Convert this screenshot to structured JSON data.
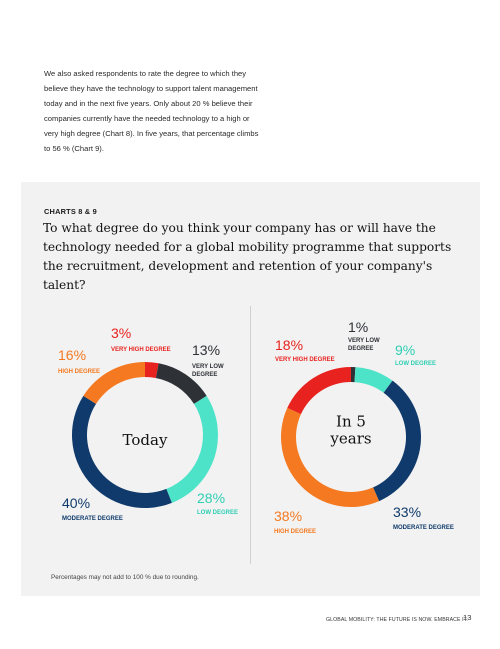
{
  "intro_text": "We also asked respondents to rate the degree to which they believe they have the technology to support talent management today and in the next five years.  Only about 20 % believe their companies currently have the needed technology to a high or very high degree (Chart 8).  In five years, that percentage climbs to 56 % (Chart 9).",
  "section_label": "CHARTS 8 & 9",
  "question": "To what degree do you think your company has or will have the technology needed for a global mobility programme that supports the recruitment, development and retention of your company's talent?",
  "note": "Percentages may not add to 100 % due to rounding.",
  "footer": "GLOBAL MOBILITY: THE FUTURE IS NOW. EMBRACE IT.",
  "page_number": "13",
  "colors": {
    "very_high": "#e8231f",
    "high": "#f47920",
    "moderate": "#0f3a6b",
    "low": "#4de3c9",
    "very_low": "#2e3136"
  },
  "chart_data": [
    {
      "type": "pie",
      "center_label": "Today",
      "slices": [
        {
          "label": "VERY HIGH DEGREE",
          "value": 3,
          "display": "3%",
          "color_key": "very_high"
        },
        {
          "label": "VERY LOW DEGREE",
          "value": 13,
          "display": "13%",
          "color_key": "very_low"
        },
        {
          "label": "LOW DEGREE",
          "value": 28,
          "display": "28%",
          "color_key": "low"
        },
        {
          "label": "MODERATE DEGREE",
          "value": 40,
          "display": "40%",
          "color_key": "moderate"
        },
        {
          "label": "HIGH DEGREE",
          "value": 16,
          "display": "16%",
          "color_key": "high"
        }
      ]
    },
    {
      "type": "pie",
      "center_label": "In 5 years",
      "slices": [
        {
          "label": "VERY LOW DEGREE",
          "value": 1,
          "display": "1%",
          "color_key": "very_low"
        },
        {
          "label": "LOW DEGREE",
          "value": 9,
          "display": "9%",
          "color_key": "low"
        },
        {
          "label": "MODERATE DEGREE",
          "value": 33,
          "display": "33%",
          "color_key": "moderate"
        },
        {
          "label": "HIGH DEGREE",
          "value": 38,
          "display": "38%",
          "color_key": "high"
        },
        {
          "label": "VERY HIGH DEGREE",
          "value": 18,
          "display": "18%",
          "color_key": "very_high"
        }
      ]
    }
  ]
}
